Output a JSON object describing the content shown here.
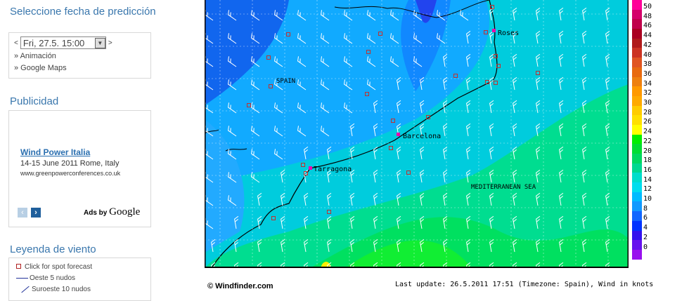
{
  "sidebar": {
    "date_heading": "Seleccione fecha de predicción",
    "prev": "<",
    "next": ">",
    "date_value": "Fri, 27.5. 15:00",
    "links": [
      "» Animación",
      "» Google Maps"
    ],
    "ads_heading": "Publicidad",
    "ad": {
      "title": "Wind Power Italia",
      "line": "14-15 June 2011 Rome, Italy",
      "url": "www.greenpowerconferences.co.uk",
      "ads_by": "Ads by",
      "google": "Google"
    },
    "legend_heading": "Leyenda de viento",
    "legend": [
      "Click for spot forecast",
      "Oeste 5 nudos",
      "Suroeste 10 nudos"
    ]
  },
  "map": {
    "labels": {
      "spain": "SPAIN",
      "sea": "MEDITERRANEAN SEA",
      "roses": "Roses",
      "barcelona": "Barcelona",
      "tarragona": "Tarragona"
    },
    "copyright": "© Windfinder.com",
    "update": "Last update: 26.5.2011 17:51 (Timezone: Spain), Wind in knots"
  },
  "scale": {
    "values": [
      50,
      48,
      46,
      44,
      42,
      40,
      38,
      36,
      34,
      32,
      30,
      28,
      26,
      24,
      22,
      20,
      18,
      16,
      14,
      12,
      10,
      8,
      6,
      4,
      2,
      0
    ],
    "colors": [
      "#ff0099",
      "#d4006a",
      "#c0004a",
      "#aa0020",
      "#b01a1a",
      "#cc3322",
      "#e05522",
      "#e86a10",
      "#ee8010",
      "#ff9900",
      "#ffaa00",
      "#ffcc00",
      "#ffe000",
      "#ffff00",
      "#00ee00",
      "#00dd33",
      "#00d860",
      "#00d890",
      "#00ddcc",
      "#00ddee",
      "#00bbff",
      "#1199ff",
      "#1166ff",
      "#0033ff",
      "#3311ee",
      "#6611ee",
      "#9911ee"
    ]
  }
}
